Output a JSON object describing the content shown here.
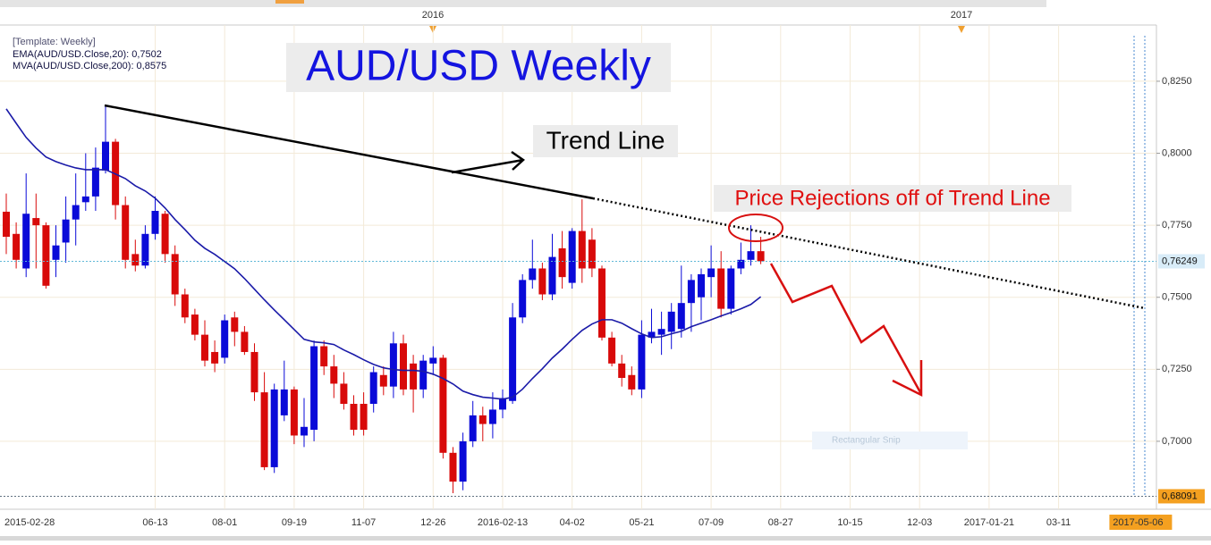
{
  "chart_data": {
    "type": "candlestick",
    "title": "AUD/USD Weekly",
    "legend_lines": [
      "[Template: Weekly]",
      "EMA(AUD/USD.Close,20): 0,7502",
      "MVA(AUD/USD.Close,200): 0,8575"
    ],
    "annotations": {
      "trend_line": "Trend Line",
      "rejections": "Price Rejections off of Trend Line"
    },
    "watermark": "Rectangular Snip",
    "top_labels": [
      "2016",
      "2017"
    ],
    "categories": [
      "2015-02-28",
      null,
      null,
      null,
      null,
      null,
      null,
      null,
      null,
      null,
      null,
      null,
      null,
      null,
      null,
      "06-13",
      null,
      null,
      null,
      null,
      null,
      null,
      "08-01",
      null,
      null,
      null,
      null,
      null,
      null,
      "09-19",
      null,
      null,
      null,
      null,
      null,
      null,
      "11-07",
      null,
      null,
      null,
      null,
      null,
      null,
      "12-26",
      null,
      null,
      null,
      null,
      null,
      null,
      "2016-02-13",
      null,
      null,
      null,
      null,
      null,
      null,
      "04-02",
      null,
      null,
      null,
      null,
      null,
      null,
      "05-21",
      null,
      null,
      null,
      null,
      null,
      null,
      "07-09",
      null,
      null,
      null,
      null,
      null,
      null,
      "08-27",
      null,
      null,
      null,
      null,
      null,
      null,
      "10-15",
      null,
      null,
      null,
      null,
      null,
      null,
      "12-03",
      null,
      null,
      null,
      null,
      null,
      null,
      "2017-01-21",
      null,
      null,
      null,
      null,
      null,
      null,
      "03-11",
      null,
      null,
      null,
      null,
      null,
      null,
      null,
      "2017-05-06"
    ],
    "up_color": "#0a0ad8",
    "down_color": "#d80a0a",
    "open": [
      0.7797,
      0.772,
      0.76,
      0.7775,
      0.775,
      0.763,
      0.769,
      0.777,
      0.783,
      0.785,
      0.794,
      0.804,
      0.782,
      0.765,
      0.761,
      0.772,
      0.779,
      0.765,
      0.751,
      0.744,
      0.737,
      0.731,
      0.729,
      0.743,
      0.738,
      0.731,
      0.717,
      0.691,
      0.709,
      0.718,
      0.702,
      0.704,
      0.733,
      0.726,
      0.72,
      0.713,
      0.713,
      0.713,
      0.723,
      0.719,
      0.734,
      0.727,
      0.718,
      0.727,
      0.729,
      0.696,
      0.686,
      0.7,
      0.709,
      0.706,
      0.711,
      0.714,
      0.743,
      0.756,
      0.76,
      0.751,
      0.767,
      0.755,
      0.773,
      0.77,
      0.76,
      0.736,
      0.727,
      0.723,
      0.718,
      0.736,
      0.737,
      0.738,
      0.739,
      0.748,
      0.75,
      0.757,
      0.76,
      0.746,
      0.76,
      0.763,
      0.766,
      null,
      null,
      null,
      null,
      null,
      null,
      null,
      null,
      null,
      null,
      null,
      null,
      null,
      null,
      null,
      null,
      null,
      null,
      null,
      null,
      null,
      null,
      null,
      null,
      null,
      null,
      null,
      null,
      null,
      null,
      null,
      null,
      null,
      null,
      null,
      null,
      null,
      null
    ],
    "high": [
      0.786,
      0.776,
      0.793,
      0.786,
      0.776,
      0.775,
      0.785,
      0.793,
      0.8,
      0.802,
      0.8165,
      0.805,
      0.785,
      0.77,
      0.775,
      0.785,
      0.78,
      0.768,
      0.753,
      0.746,
      0.742,
      0.735,
      0.744,
      0.745,
      0.74,
      0.734,
      0.724,
      0.72,
      0.728,
      0.719,
      0.715,
      0.735,
      0.735,
      0.73,
      0.724,
      0.716,
      0.717,
      0.726,
      0.726,
      0.738,
      0.737,
      0.73,
      0.73,
      0.733,
      0.73,
      0.698,
      0.703,
      0.714,
      0.712,
      0.717,
      0.718,
      0.748,
      0.758,
      0.77,
      0.762,
      0.772,
      0.773,
      0.774,
      0.784,
      0.774,
      0.761,
      0.738,
      0.73,
      0.726,
      0.742,
      0.746,
      0.745,
      0.748,
      0.761,
      0.758,
      0.76,
      0.768,
      0.766,
      0.761,
      0.769,
      0.775,
      0.771,
      null,
      null,
      null,
      null,
      null,
      null,
      null,
      null,
      null,
      null,
      null,
      null,
      null,
      null,
      null,
      null,
      null,
      null,
      null,
      null,
      null,
      null,
      null,
      null,
      null,
      null,
      null,
      null,
      null,
      null,
      null,
      null,
      null,
      null,
      null,
      null,
      null,
      null
    ],
    "low": [
      0.765,
      0.76,
      0.757,
      0.76,
      0.753,
      0.757,
      0.762,
      0.768,
      0.78,
      0.78,
      0.793,
      0.777,
      0.76,
      0.759,
      0.76,
      0.77,
      0.762,
      0.747,
      0.741,
      0.735,
      0.726,
      0.724,
      0.727,
      0.733,
      0.73,
      0.714,
      0.69,
      0.689,
      0.707,
      0.699,
      0.698,
      0.7,
      0.723,
      0.715,
      0.711,
      0.702,
      0.702,
      0.71,
      0.716,
      0.715,
      0.716,
      0.71,
      0.715,
      0.723,
      0.694,
      0.682,
      0.683,
      0.698,
      0.7,
      0.701,
      0.708,
      0.713,
      0.741,
      0.753,
      0.749,
      0.749,
      0.753,
      0.753,
      0.755,
      0.757,
      0.735,
      0.726,
      0.719,
      0.716,
      0.715,
      0.734,
      0.73,
      0.732,
      0.736,
      0.738,
      0.742,
      0.75,
      0.743,
      0.744,
      0.758,
      0.761,
      0.7615,
      null,
      null,
      null,
      null,
      null,
      null,
      null,
      null,
      null,
      null,
      null,
      null,
      null,
      null,
      null,
      null,
      null,
      null,
      null,
      null,
      null,
      null,
      null,
      null,
      null,
      null,
      null,
      null,
      null,
      null,
      null,
      null,
      null,
      null,
      null,
      null,
      null,
      null
    ],
    "close": [
      0.771,
      0.763,
      0.779,
      0.775,
      0.754,
      0.768,
      0.777,
      0.782,
      0.785,
      0.795,
      0.804,
      0.782,
      0.763,
      0.761,
      0.772,
      0.78,
      0.765,
      0.751,
      0.743,
      0.737,
      0.728,
      0.727,
      0.742,
      0.738,
      0.731,
      0.717,
      0.691,
      0.718,
      0.718,
      0.702,
      0.705,
      0.733,
      0.726,
      0.72,
      0.713,
      0.704,
      0.704,
      0.724,
      0.719,
      0.734,
      0.718,
      0.718,
      0.728,
      0.729,
      0.696,
      0.686,
      0.7,
      0.709,
      0.706,
      0.711,
      0.715,
      0.743,
      0.756,
      0.76,
      0.751,
      0.764,
      0.757,
      0.773,
      0.76,
      0.76,
      0.736,
      0.727,
      0.722,
      0.718,
      0.737,
      0.738,
      0.739,
      0.745,
      0.748,
      0.756,
      0.758,
      0.76,
      0.746,
      0.76,
      0.763,
      0.766,
      0.7625,
      null,
      null,
      null,
      null,
      null,
      null,
      null,
      null,
      null,
      null,
      null,
      null,
      null,
      null,
      null,
      null,
      null,
      null,
      null,
      null,
      null,
      null,
      null,
      null,
      null,
      null,
      null,
      null,
      null,
      null,
      null,
      null,
      null,
      null,
      null,
      null,
      null,
      null
    ],
    "ema_line": {
      "color": "#1a1aa8",
      "values": [
        0.8154,
        0.8104,
        0.8055,
        0.8018,
        0.7987,
        0.7971,
        0.7959,
        0.7949,
        0.7943,
        0.7943,
        0.7943,
        0.7928,
        0.7912,
        0.7887,
        0.7869,
        0.7844,
        0.781,
        0.777,
        0.7735,
        0.7698,
        0.767,
        0.7649,
        0.7624,
        0.7599,
        0.7565,
        0.7528,
        0.7491,
        0.7456,
        0.7422,
        0.7388,
        0.7354,
        0.7345,
        0.7342,
        0.7336,
        0.7317,
        0.7301,
        0.7283,
        0.7267,
        0.7255,
        0.7249,
        0.7246,
        0.7246,
        0.7243,
        0.7233,
        0.7218,
        0.7199,
        0.7174,
        0.7162,
        0.7153,
        0.715,
        0.7146,
        0.7153,
        0.7181,
        0.7218,
        0.7252,
        0.7289,
        0.732,
        0.7354,
        0.7385,
        0.7407,
        0.7422,
        0.7422,
        0.741,
        0.7391,
        0.7373,
        0.736,
        0.7363,
        0.7373,
        0.7382,
        0.7398,
        0.741,
        0.7422,
        0.7435,
        0.7447,
        0.746,
        0.7475,
        0.7502,
        null,
        null,
        null,
        null,
        null,
        null,
        null,
        null,
        null,
        null,
        null,
        null,
        null,
        null,
        null,
        null,
        null,
        null,
        null,
        null,
        null,
        null,
        null,
        null,
        null,
        null,
        null,
        null,
        null,
        null,
        null,
        null,
        null,
        null,
        null,
        null,
        null,
        null
      ]
    },
    "ylim": [
      0.6795,
      0.8439
    ],
    "yticks": [
      {
        "value": 0.7,
        "label": "0,7000"
      },
      {
        "value": 0.725,
        "label": "0,7250"
      },
      {
        "value": 0.75,
        "label": "0,7500"
      },
      {
        "value": 0.775,
        "label": "0,7750"
      },
      {
        "value": 0.8,
        "label": "0,8000"
      },
      {
        "value": 0.825,
        "label": "0,8250"
      }
    ],
    "price_lines": [
      {
        "value": 0.76249,
        "label": "0,76249"
      },
      {
        "value": 0.68091,
        "label": "0,68091"
      }
    ],
    "grid": true
  }
}
